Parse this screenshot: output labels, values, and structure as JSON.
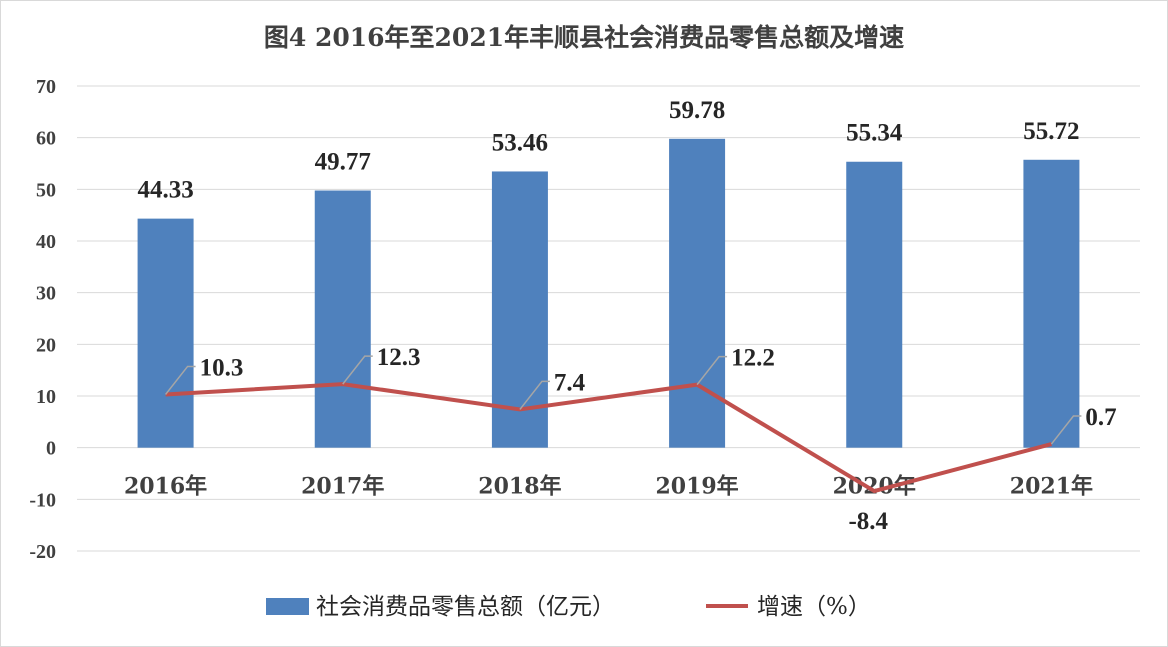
{
  "title": "图4   2016年至2021年丰顺县社会消费品零售总额及增速",
  "colors": {
    "bar": "#4f81bd",
    "line": "#c0504d",
    "grid": "#d9d9d9",
    "leader": "#a6a6a6"
  },
  "chart_data": {
    "type": "bar",
    "title": "图4   2016年至2021年丰顺县社会消费品零售总额及增速",
    "categories": [
      "2016年",
      "2017年",
      "2018年",
      "2019年",
      "2020年",
      "2021年"
    ],
    "series": [
      {
        "name": "社会消费品零售总额（亿元）",
        "type": "bar",
        "values": [
          44.33,
          49.77,
          53.46,
          59.78,
          55.34,
          55.72
        ]
      },
      {
        "name": "增速（%）",
        "type": "line",
        "values": [
          10.3,
          12.3,
          7.4,
          12.2,
          -8.4,
          0.7
        ]
      }
    ],
    "bar_labels": [
      "44.33",
      "49.77",
      "53.46",
      "59.78",
      "55.34",
      "55.72"
    ],
    "line_labels": [
      "10.3",
      "12.3",
      "7.4",
      "12.2",
      "-8.4",
      "0.7"
    ],
    "y_ticks": [
      "70",
      "60",
      "50",
      "40",
      "30",
      "20",
      "10",
      "0",
      "-10",
      "-20"
    ],
    "ylim": [
      -20,
      70
    ],
    "grid": true,
    "legend_position": "bottom"
  }
}
